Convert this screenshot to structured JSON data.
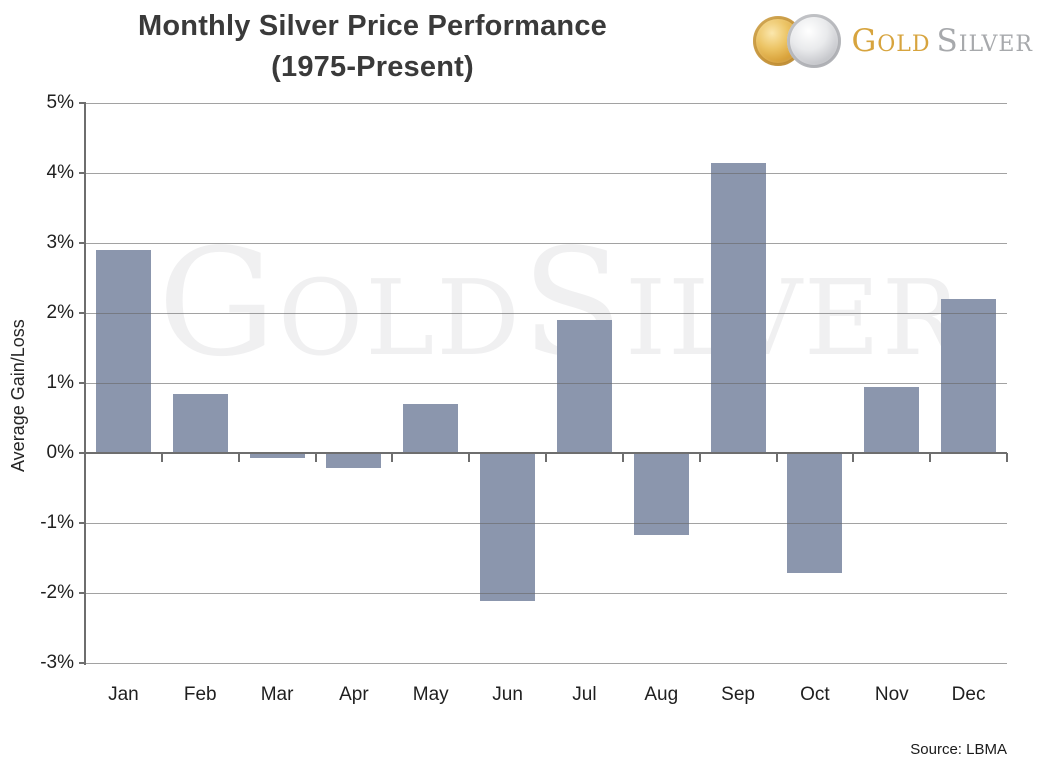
{
  "title": {
    "line1": "Monthly Silver Price Performance",
    "line2": "(1975-Present)"
  },
  "logo": {
    "gold_label": "Gold",
    "silver_label": "Silver",
    "gold_color": "#d7a43e",
    "silver_color": "#a7a9ac",
    "coins": [
      "gold-coin",
      "silver-coin"
    ]
  },
  "watermark": "GoldSilver",
  "source_note": "Source: LBMA",
  "chart_data": {
    "type": "bar",
    "title": "Monthly Silver Price Performance (1975-Present)",
    "categories": [
      "Jan",
      "Feb",
      "Mar",
      "Apr",
      "May",
      "Jun",
      "Jul",
      "Aug",
      "Sep",
      "Oct",
      "Nov",
      "Dec"
    ],
    "values": [
      2.9,
      0.85,
      -0.05,
      -0.2,
      0.7,
      -2.1,
      1.9,
      -1.15,
      4.15,
      -1.7,
      0.95,
      2.2
    ],
    "xlabel": "",
    "ylabel": "Average Gain/Loss",
    "ylim": [
      -3,
      5
    ],
    "ytick_labels": [
      "5%",
      "4%",
      "3%",
      "2%",
      "1%",
      "0%",
      "-1%",
      "-2%",
      "-3%"
    ],
    "grid": true,
    "legend": false,
    "bar_color": "#8B96AD",
    "units": "percent"
  }
}
